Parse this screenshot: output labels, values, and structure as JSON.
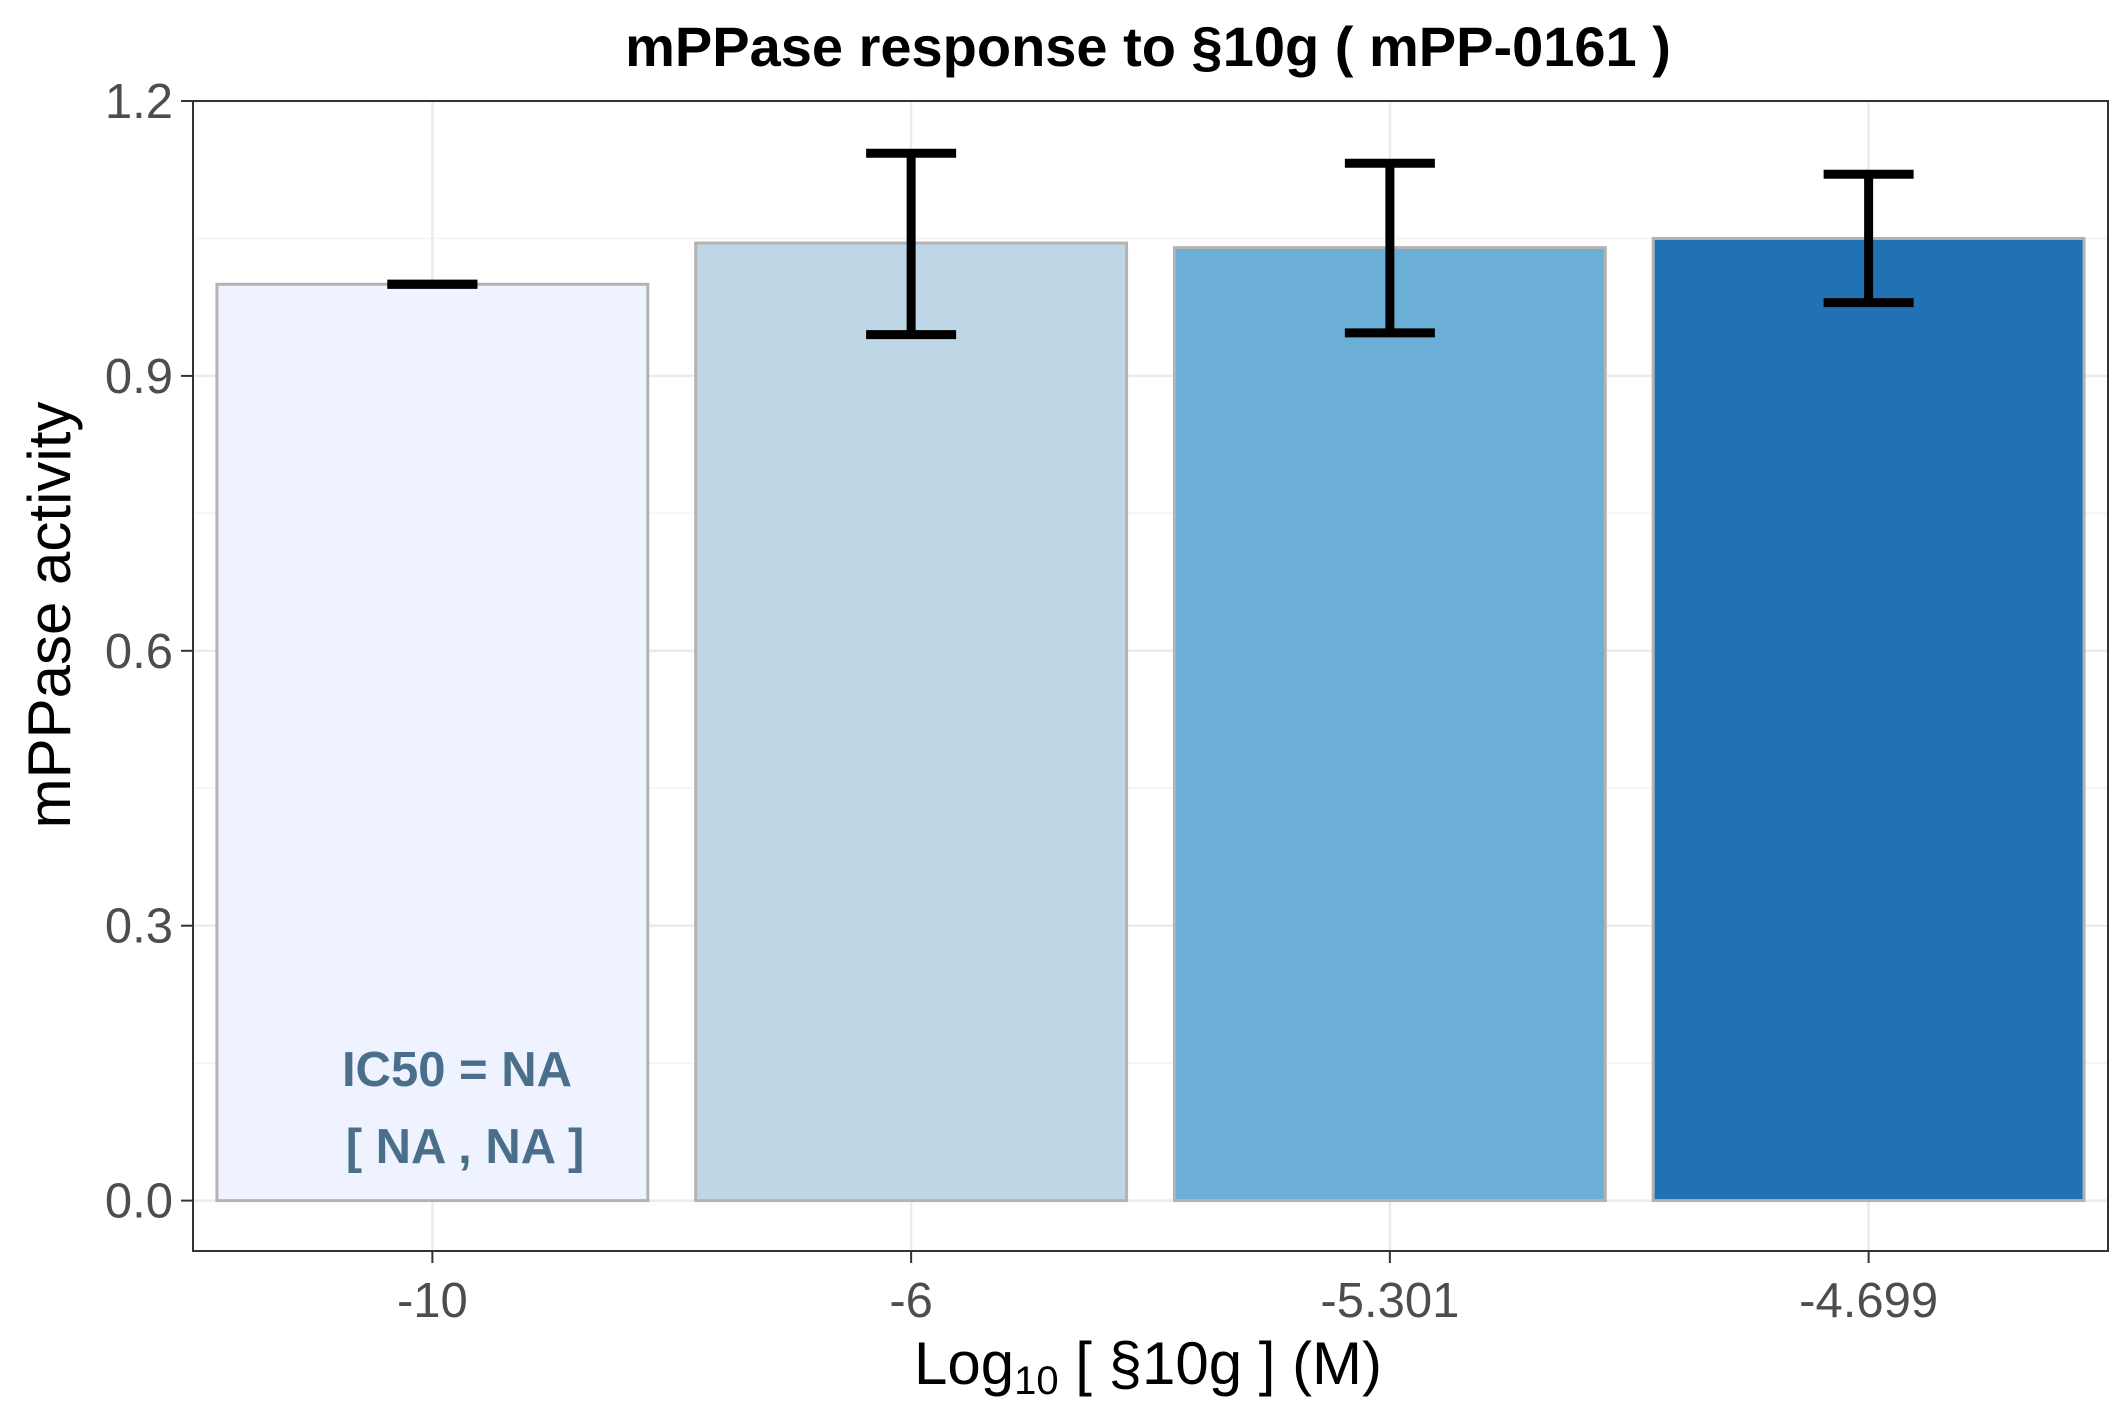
{
  "chart_data": {
    "type": "bar",
    "title": "mPPase response to §10g ( mPP-0161 )",
    "xlabel": {
      "prefix": "Log",
      "subscript": "10",
      "suffix": " [ §10g ] (M)"
    },
    "ylabel": "mPPase activity",
    "categories": [
      "-10",
      "-6",
      "-5.301",
      "-4.699"
    ],
    "values": [
      1.0,
      1.045,
      1.04,
      1.05
    ],
    "error_low": [
      1.0,
      0.945,
      0.947,
      0.98
    ],
    "error_high": [
      1.0,
      1.143,
      1.132,
      1.12
    ],
    "bar_colors": [
      "#eff3ff",
      "#bed6e6",
      "#6baed6",
      "#2171b5"
    ],
    "bar_outline_color": "#b3b3b3",
    "ylim": [
      -0.055,
      1.2
    ],
    "yticks": [
      "0.0",
      "0.3",
      "0.6",
      "0.9",
      "1.2"
    ],
    "grid": true,
    "annotation": {
      "line1": "IC50 = NA",
      "line2": "[ NA , NA ]",
      "color": "#4a6f8a"
    }
  }
}
